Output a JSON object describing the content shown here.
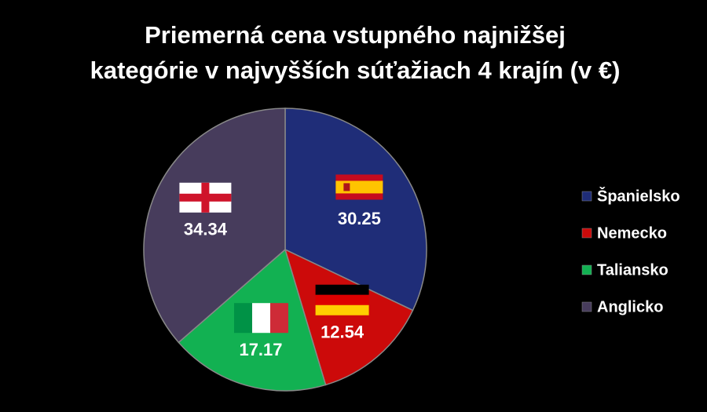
{
  "chart_data": {
    "type": "pie",
    "title": [
      "Priemerná cena vstupného najnižšej",
      "kategórie v najvyšších súťažiach 4 krajín (v €)"
    ],
    "categories": [
      "Španielsko",
      "Nemecko",
      "Taliansko",
      "Anglicko"
    ],
    "values": [
      30.25,
      12.54,
      17.17,
      34.34
    ],
    "colors": [
      "#1f2d78",
      "#cc0a0a",
      "#12b152",
      "#473c5c"
    ],
    "legend": "right"
  }
}
